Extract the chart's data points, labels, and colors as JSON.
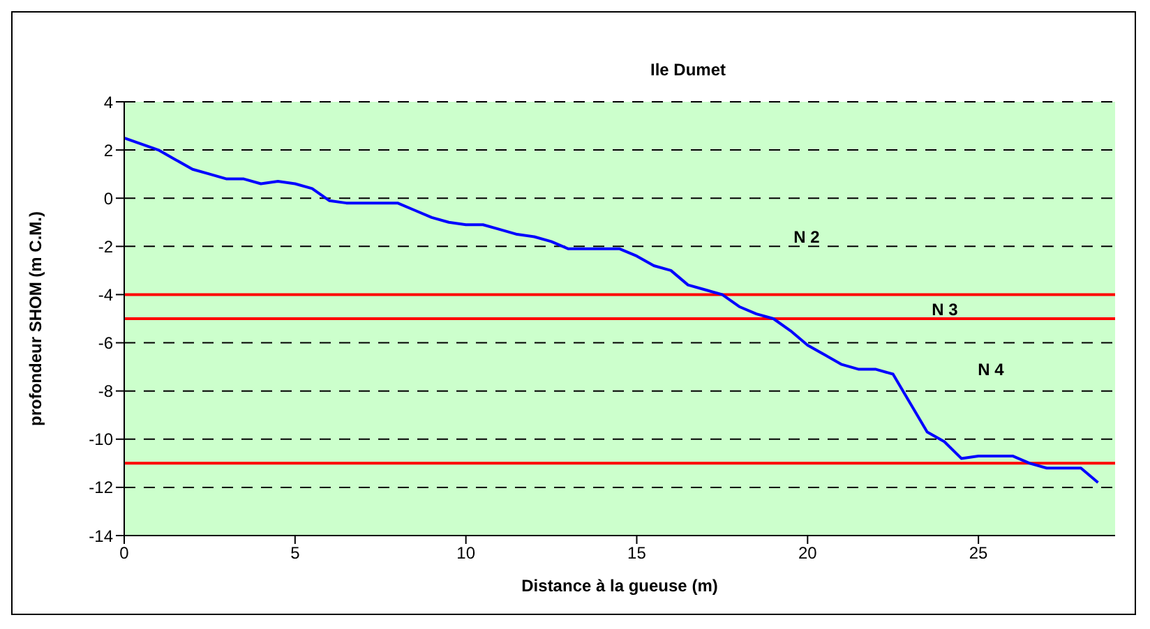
{
  "chart_data": {
    "type": "line",
    "title": "Ile Dumet",
    "xlabel": "Distance à la gueuse (m)",
    "ylabel": "profondeur SHOM  (m C.M.)",
    "x": [
      0,
      1,
      1.5,
      2,
      2.5,
      3,
      3.5,
      4,
      4.5,
      5,
      5.5,
      6,
      6.5,
      8,
      8.5,
      9,
      9.5,
      10,
      10.5,
      11,
      11.5,
      12,
      12.5,
      13,
      13.5,
      14,
      14.5,
      15,
      15.5,
      16,
      16.5,
      17,
      17.5,
      18,
      18.5,
      19,
      19.5,
      20,
      20.5,
      21,
      21.5,
      22,
      22.5,
      23,
      23.5,
      24,
      24.5,
      25,
      25.5,
      26,
      26.5,
      27,
      28,
      28.5
    ],
    "series": [
      {
        "color": "#0000ff",
        "values": [
          2.5,
          2.0,
          1.6,
          1.2,
          1.0,
          0.8,
          0.8,
          0.6,
          0.7,
          0.6,
          0.4,
          -0.1,
          -0.2,
          -0.2,
          -0.5,
          -0.8,
          -1.0,
          -1.1,
          -1.1,
          -1.3,
          -1.5,
          -1.6,
          -1.8,
          -2.1,
          -2.1,
          -2.1,
          -2.1,
          -2.4,
          -2.8,
          -3.0,
          -3.6,
          -3.8,
          -4.0,
          -4.5,
          -4.8,
          -5.0,
          -5.5,
          -6.1,
          -6.5,
          -6.9,
          -7.1,
          -7.1,
          -7.3,
          -8.5,
          -9.7,
          -10.1,
          -10.8,
          -10.7,
          -10.7,
          -10.7,
          -11.0,
          -11.2,
          -11.2,
          -11.8
        ]
      }
    ],
    "xlim": [
      0,
      29
    ],
    "xticks": [
      0,
      5,
      10,
      15,
      20,
      25
    ],
    "ylim": [
      -14,
      4
    ],
    "yticks": [
      -14,
      -12,
      -10,
      -8,
      -6,
      -4,
      -2,
      0,
      2,
      4
    ],
    "grid": "y",
    "marker": "none",
    "line_style": "solid",
    "legend": false,
    "ref_lines": [
      {
        "axis": "y",
        "value": -4,
        "color": "#ff0000"
      },
      {
        "axis": "y",
        "value": -5,
        "color": "#ff0000"
      },
      {
        "axis": "y",
        "value": -11,
        "color": "#ff0000"
      }
    ],
    "annotations": [
      "N 2",
      "N 3",
      "N 4"
    ]
  }
}
